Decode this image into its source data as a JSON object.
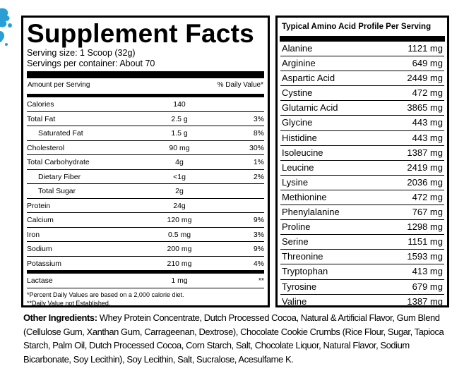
{
  "supplement_facts": {
    "title": "Supplement Facts",
    "serving_size": "Serving size: 1 Scoop (32g)",
    "servings_per_container": "Servings per container: About 70",
    "amount_header": "Amount per Serving",
    "dv_header": "% Daily Value*",
    "rows": [
      {
        "name": "Calories",
        "amount": "140",
        "dv": "",
        "indent": false
      },
      {
        "name": "Total Fat",
        "amount": "2.5 g",
        "dv": "3%",
        "indent": false
      },
      {
        "name": "Saturated Fat",
        "amount": "1.5 g",
        "dv": "8%",
        "indent": true
      },
      {
        "name": "Cholesterol",
        "amount": "90 mg",
        "dv": "30%",
        "indent": false
      },
      {
        "name": "Total Carbohydrate",
        "amount": "4g",
        "dv": "1%",
        "indent": false
      },
      {
        "name": "Dietary Fiber",
        "amount": "<1g",
        "dv": "2%",
        "indent": true
      },
      {
        "name": "Total Sugar",
        "amount": "2g",
        "dv": "",
        "indent": true
      },
      {
        "name": "Protein",
        "amount": "24g",
        "dv": "",
        "indent": false
      },
      {
        "name": "Calcium",
        "amount": "120 mg",
        "dv": "9%",
        "indent": false
      },
      {
        "name": "Iron",
        "amount": "0.5 mg",
        "dv": "3%",
        "indent": false
      },
      {
        "name": "Sodium",
        "amount": "200 mg",
        "dv": "9%",
        "indent": false
      },
      {
        "name": "Potassium",
        "amount": "210 mg",
        "dv": "4%",
        "indent": false
      },
      {
        "name": "Lactase",
        "amount": "1 mg",
        "dv": "**",
        "indent": false
      }
    ],
    "footnote_1": "*Percent Daily Values are based on a 2,000 calorie diet.",
    "footnote_2": "**Daily Value not Established."
  },
  "amino_profile": {
    "title": "Typical Amino Acid Profile Per Serving",
    "rows": [
      {
        "name": "Alanine",
        "amount": "1121 mg"
      },
      {
        "name": "Arginine",
        "amount": "649 mg"
      },
      {
        "name": "Aspartic Acid",
        "amount": "2449 mg"
      },
      {
        "name": "Cystine",
        "amount": "472 mg"
      },
      {
        "name": "Glutamic Acid",
        "amount": "3865 mg"
      },
      {
        "name": "Glycine",
        "amount": "443 mg"
      },
      {
        "name": "Histidine",
        "amount": "443 mg"
      },
      {
        "name": "Isoleucine",
        "amount": "1387 mg"
      },
      {
        "name": "Leucine",
        "amount": "2419 mg"
      },
      {
        "name": "Lysine",
        "amount": "2036 mg"
      },
      {
        "name": "Methionine",
        "amount": "472 mg"
      },
      {
        "name": "Phenylalanine",
        "amount": "767 mg"
      },
      {
        "name": "Proline",
        "amount": "1298 mg"
      },
      {
        "name": "Serine",
        "amount": "1151 mg"
      },
      {
        "name": "Threonine",
        "amount": "1593 mg"
      },
      {
        "name": "Tryptophan",
        "amount": "413 mg"
      },
      {
        "name": "Tyrosine",
        "amount": "679 mg"
      },
      {
        "name": "Valine",
        "amount": "1387 mg"
      }
    ]
  },
  "ingredients": {
    "label": "Other Ingredients:",
    "text": "Whey Protein Concentrate, Dutch Processed Cocoa, Natural & Artificial Flavor, Gum Blend (Cellulose Gum, Xanthan Gum, Carrageenan, Dextrose), Chocolate Cookie Crumbs (Rice Flour, Sugar, Tapioca Starch, Palm Oil, Dutch Processed Cocoa, Corn Starch, Salt, Chocolate Liquor, Natural Flavor, Sodium Bicarbonate, Soy Lecithin), Soy Lecithin, Salt, Sucralose, Acesulfame K."
  },
  "colors": {
    "text": "#000000",
    "background": "#ffffff",
    "splash_accent": "#2a9fd6"
  }
}
